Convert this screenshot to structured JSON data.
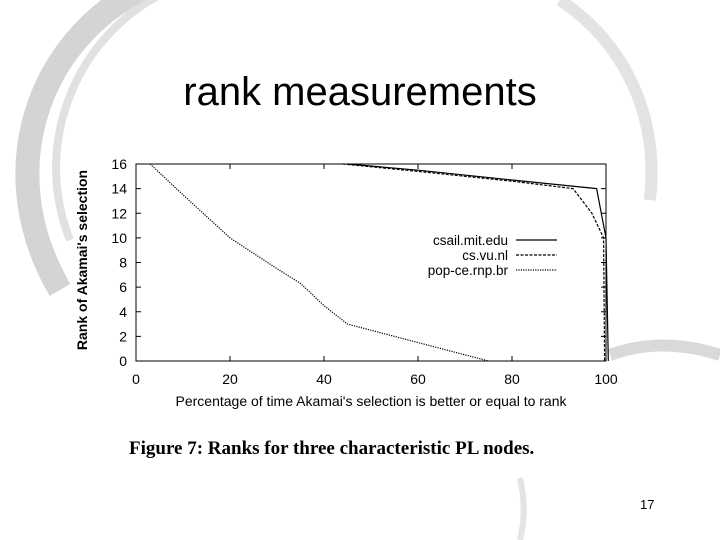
{
  "slide": {
    "title": "rank measurements",
    "caption": "Figure 7: Ranks for three characteristic PL nodes.",
    "page_number": "17"
  },
  "chart_data": {
    "type": "line",
    "xlabel": "Percentage of time Akamai's selection is better or equal to rank",
    "ylabel": "Rank of Akamai's selection",
    "xlim": [
      0,
      100
    ],
    "ylim": [
      0,
      16
    ],
    "xticks": [
      "0",
      "20",
      "40",
      "60",
      "80",
      "100"
    ],
    "yticks": [
      "0",
      "2",
      "4",
      "6",
      "8",
      "10",
      "12",
      "14",
      "16"
    ],
    "grid": false,
    "legend_position": "right",
    "series": [
      {
        "name": "csail.mit.edu",
        "style": "solid",
        "points": [
          [
            45,
            16
          ],
          [
            60,
            15.5
          ],
          [
            80,
            14.7
          ],
          [
            98,
            14
          ],
          [
            100,
            10
          ],
          [
            100.5,
            0
          ]
        ]
      },
      {
        "name": "cs.vu.nl",
        "style": "dashed",
        "points": [
          [
            44,
            16
          ],
          [
            60,
            15.4
          ],
          [
            80,
            14.6
          ],
          [
            93,
            14
          ],
          [
            97,
            12
          ],
          [
            99.5,
            10
          ],
          [
            99.7,
            0
          ]
        ]
      },
      {
        "name": "pop-ce.rnp.br",
        "style": "dotted",
        "points": [
          [
            3,
            16
          ],
          [
            10,
            13.5
          ],
          [
            20,
            10
          ],
          [
            30,
            7.5
          ],
          [
            35,
            6.3
          ],
          [
            40,
            4.5
          ],
          [
            45,
            3
          ],
          [
            55,
            2
          ],
          [
            65,
            1
          ],
          [
            75,
            0
          ]
        ]
      }
    ]
  }
}
